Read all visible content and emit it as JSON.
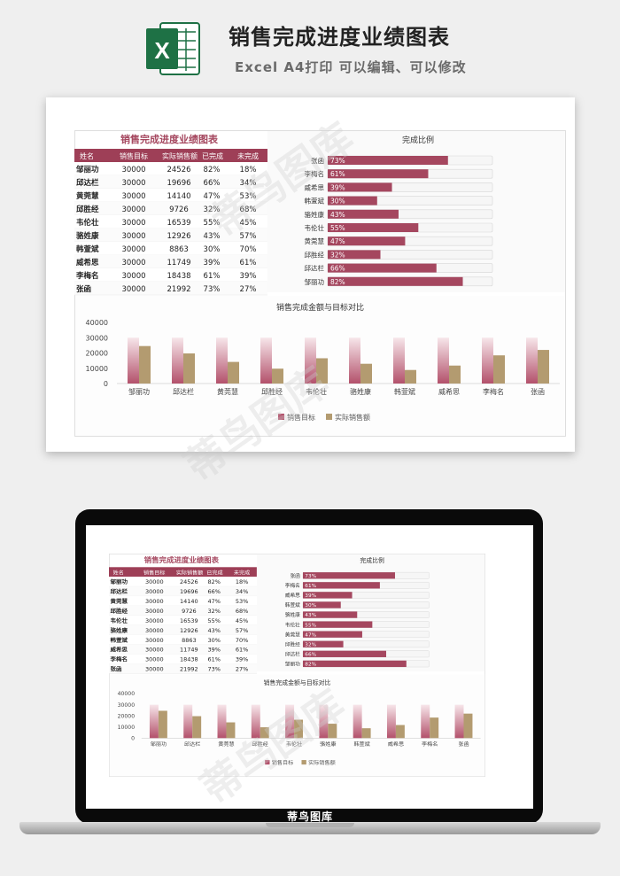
{
  "header": {
    "logo_letter": "X",
    "title": "销售完成进度业绩图表",
    "subtitle": "Excel A4打印 可以编辑、可以修改"
  },
  "table": {
    "title": "销售完成进度业绩图表",
    "columns": [
      "姓名",
      "销售目标",
      "实际销售额",
      "已完成",
      "未完成"
    ],
    "rows": [
      [
        "邹丽功",
        "30000",
        "24526",
        "82%",
        "18%"
      ],
      [
        "邱达栏",
        "30000",
        "19696",
        "66%",
        "34%"
      ],
      [
        "黄莞慧",
        "30000",
        "14140",
        "47%",
        "53%"
      ],
      [
        "邱胜经",
        "30000",
        "9726",
        "32%",
        "68%"
      ],
      [
        "韦伦壮",
        "30000",
        "16539",
        "55%",
        "45%"
      ],
      [
        "骆姓康",
        "30000",
        "12926",
        "43%",
        "57%"
      ],
      [
        "韩萱斌",
        "30000",
        "8863",
        "30%",
        "70%"
      ],
      [
        "威希思",
        "30000",
        "11749",
        "39%",
        "61%"
      ],
      [
        "李梅名",
        "30000",
        "18438",
        "61%",
        "39%"
      ],
      [
        "张函",
        "30000",
        "21992",
        "73%",
        "27%"
      ]
    ]
  },
  "chart_data": [
    {
      "type": "bar",
      "orientation": "horizontal",
      "title": "完成比例",
      "categories": [
        "张函",
        "李梅名",
        "威希思",
        "韩萱斌",
        "骆姓康",
        "韦伦壮",
        "黄莞慧",
        "邱胜经",
        "邱达栏",
        "邹丽功"
      ],
      "values": [
        73,
        61,
        39,
        30,
        43,
        55,
        47,
        32,
        66,
        82
      ],
      "data_labels": [
        "73%",
        "61%",
        "39%",
        "30%",
        "43%",
        "55%",
        "47%",
        "32%",
        "66%",
        "82%"
      ],
      "xlim": [
        0,
        100
      ],
      "bar_color": "#a5475f",
      "track_color": "#f6f6f6"
    },
    {
      "type": "bar",
      "title": "销售完成金额与目标对比",
      "categories": [
        "邹丽功",
        "邱达栏",
        "黄莞慧",
        "邱胜经",
        "韦伦壮",
        "骆姓康",
        "韩萱斌",
        "威希思",
        "李梅名",
        "张函"
      ],
      "series": [
        {
          "name": "销售目标",
          "values": [
            30000,
            30000,
            30000,
            30000,
            30000,
            30000,
            30000,
            30000,
            30000,
            30000
          ],
          "color": "#b3516b"
        },
        {
          "name": "实际销售额",
          "values": [
            24526,
            19696,
            14140,
            9726,
            16539,
            12926,
            8863,
            11749,
            18438,
            21992
          ],
          "color": "#b39b70"
        }
      ],
      "yticks": [
        "40000",
        "30000",
        "20000",
        "10000",
        "0"
      ],
      "ylim": [
        0,
        40000
      ],
      "legend": "bottom",
      "grid": false
    }
  ],
  "laptop": {
    "brand": "蒂鸟图库"
  },
  "watermark": {
    "text": "蒂鸟图库"
  },
  "colors": {
    "accent": "#a5475f",
    "header_row": "#9e3f57",
    "tan": "#b39b70",
    "excel_green": "#1e7145"
  }
}
